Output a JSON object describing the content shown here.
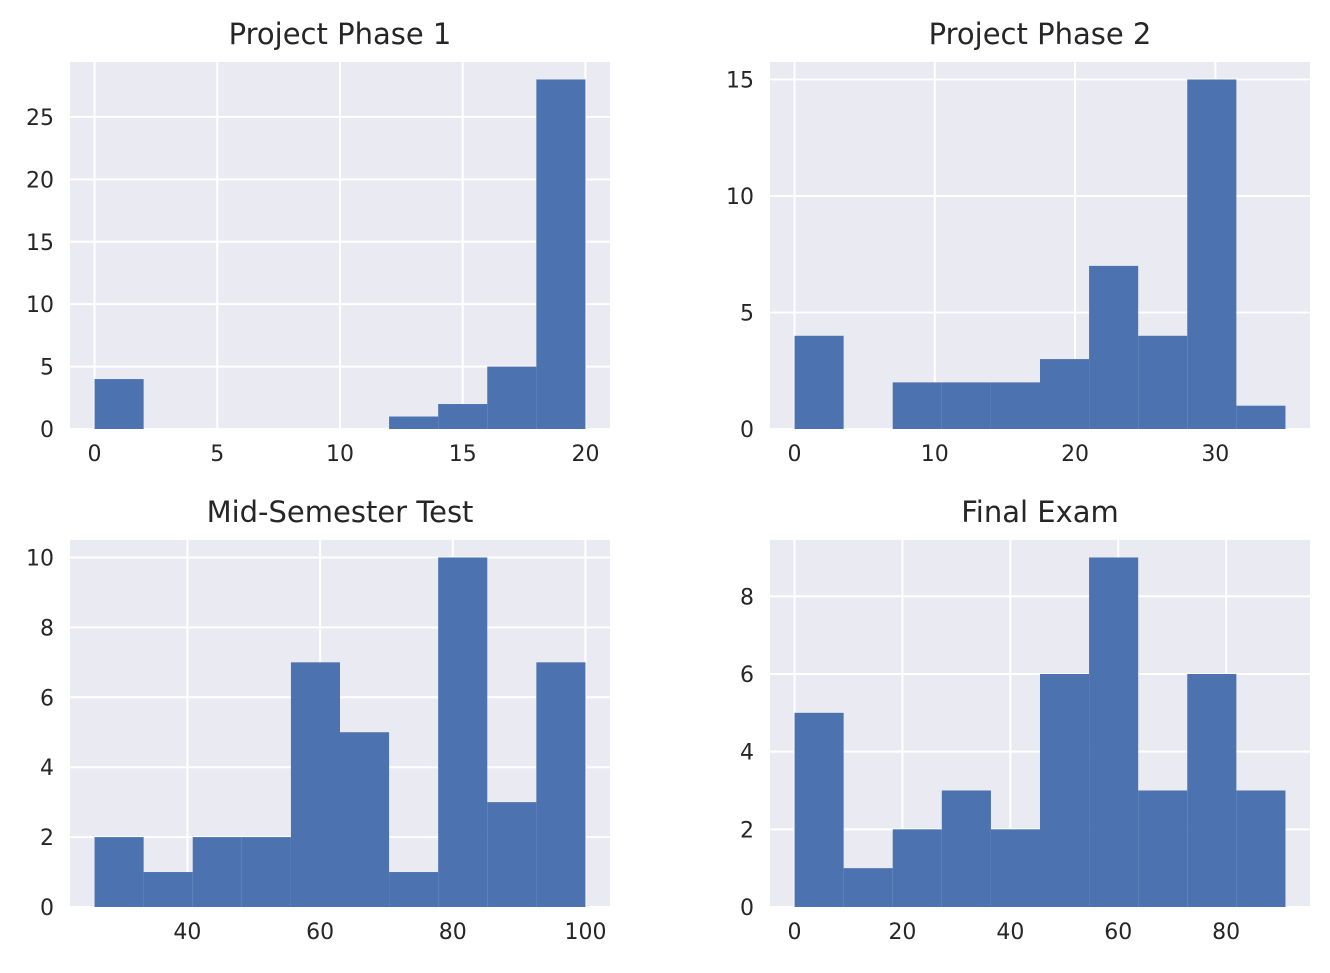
{
  "chart_data": [
    {
      "type": "bar",
      "title": "Project Phase 1",
      "bin_edges": [
        0,
        2,
        4,
        6,
        8,
        10,
        12,
        14,
        16,
        18,
        20
      ],
      "values": [
        4,
        0,
        0,
        0,
        0,
        0,
        1,
        2,
        5,
        28
      ],
      "xlim": [
        -1,
        21
      ],
      "ylim": [
        0,
        29.4
      ],
      "xticks": [
        0,
        5,
        10,
        15,
        20
      ],
      "yticks": [
        0,
        5,
        10,
        15,
        20,
        25
      ],
      "grid": true,
      "color": "#4C72B0"
    },
    {
      "type": "bar",
      "title": "Project Phase 2",
      "bin_edges": [
        0,
        3.5,
        7,
        10.5,
        14,
        17.5,
        21,
        24.5,
        28,
        31.5,
        35
      ],
      "values": [
        4,
        0,
        2,
        2,
        2,
        3,
        7,
        4,
        15,
        1
      ],
      "xlim": [
        -1.75,
        36.75
      ],
      "ylim": [
        0,
        15.75
      ],
      "xticks": [
        0,
        10,
        20,
        30
      ],
      "yticks": [
        0,
        5,
        10,
        15
      ],
      "grid": true,
      "color": "#4C72B0"
    },
    {
      "type": "bar",
      "title": "Mid-Semester Test",
      "bin_edges": [
        26,
        33.4,
        40.8,
        48.2,
        55.6,
        63,
        70.4,
        77.8,
        85.2,
        92.6,
        100
      ],
      "values": [
        2,
        1,
        2,
        2,
        7,
        5,
        1,
        10,
        3,
        7
      ],
      "xlim": [
        22.3,
        103.7
      ],
      "ylim": [
        0,
        10.5
      ],
      "xticks": [
        40,
        60,
        80,
        100
      ],
      "yticks": [
        0,
        2,
        4,
        6,
        8,
        10
      ],
      "grid": true,
      "color": "#4C72B0"
    },
    {
      "type": "bar",
      "title": "Final Exam",
      "bin_edges": [
        0,
        9.1,
        18.2,
        27.3,
        36.4,
        45.5,
        54.6,
        63.7,
        72.8,
        81.9,
        91
      ],
      "values": [
        5,
        1,
        2,
        3,
        2,
        6,
        9,
        3,
        6,
        3
      ],
      "xlim": [
        -4.55,
        95.55
      ],
      "ylim": [
        0,
        9.45
      ],
      "xticks": [
        0,
        20,
        40,
        60,
        80
      ],
      "yticks": [
        0,
        2,
        4,
        6,
        8
      ],
      "grid": true,
      "color": "#4C72B0"
    }
  ]
}
